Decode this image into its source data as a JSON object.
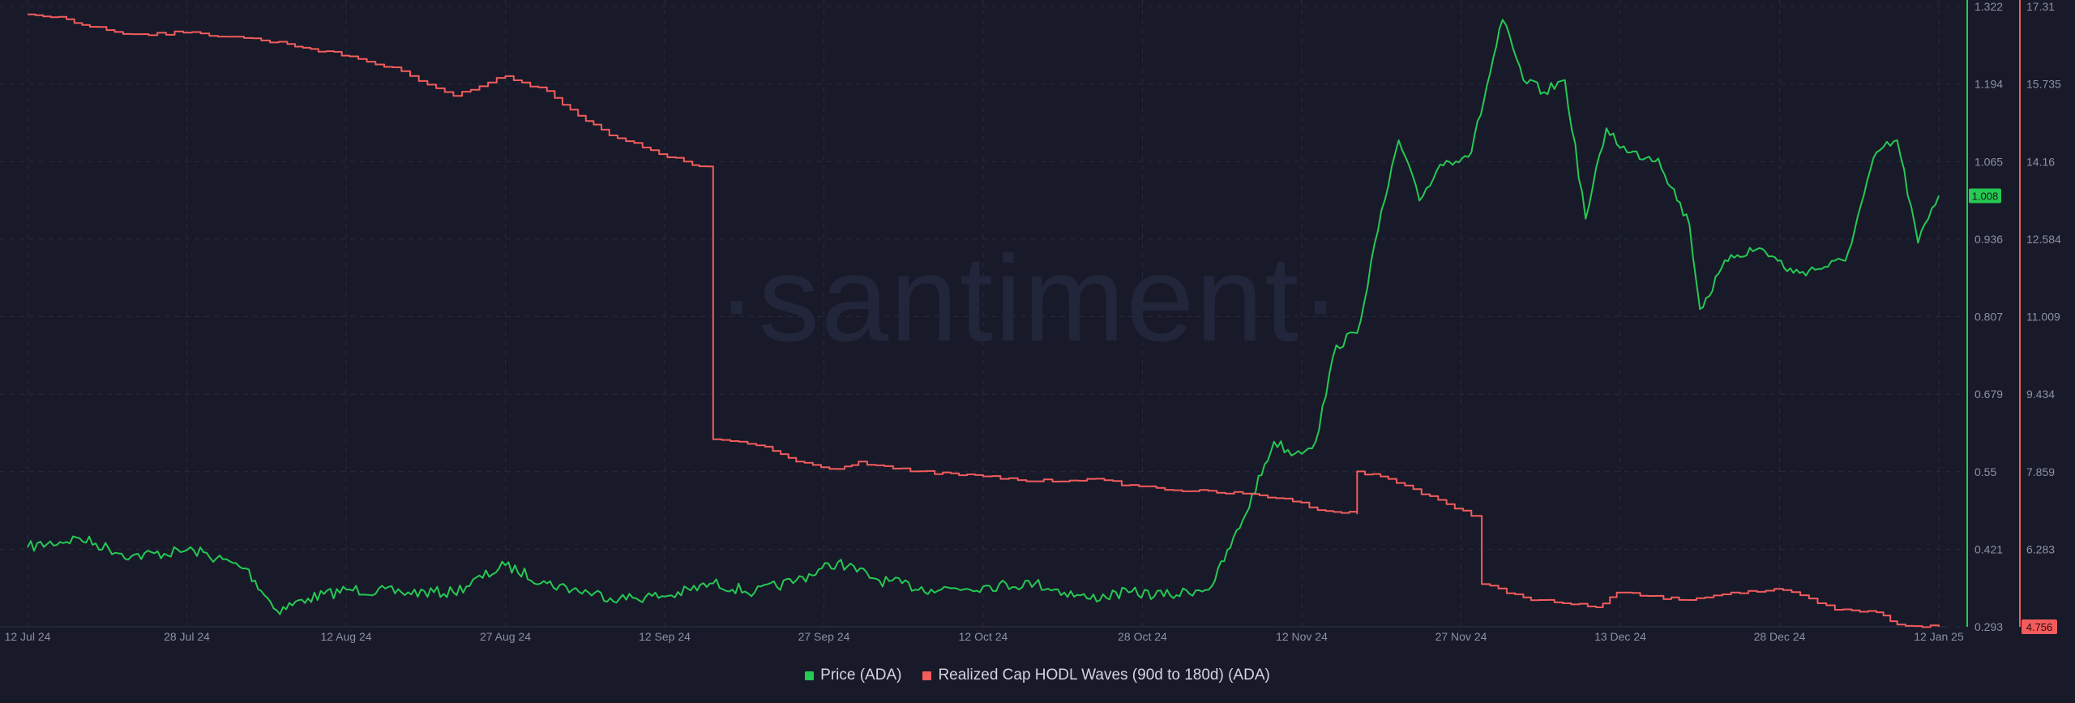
{
  "watermark": "·santiment·",
  "colors": {
    "background": "#181a29",
    "price": "#26c953",
    "hodl": "#f25c5c",
    "grid": "#262a3a",
    "tick": "#8c90a4"
  },
  "chart_data": {
    "type": "line",
    "title": "",
    "grid": true,
    "legend_placement": "bottom-center",
    "x_ticks": [
      "12 Jul 24",
      "28 Jul 24",
      "12 Aug 24",
      "27 Aug 24",
      "12 Sep 24",
      "27 Sep 24",
      "12 Oct 24",
      "28 Oct 24",
      "12 Nov 24",
      "27 Nov 24",
      "13 Dec 24",
      "28 Dec 24",
      "12 Jan 25"
    ],
    "price_axis": {
      "ticks": [
        "1.322",
        "1.194",
        "1.065",
        "0.936",
        "0.807",
        "0.679",
        "0.55",
        "0.421",
        "0.293"
      ],
      "range": [
        0.293,
        1.322
      ],
      "current_label": "1.008",
      "current_value": 1.008
    },
    "hodl_axis": {
      "ticks": [
        "17.31",
        "15.735",
        "14.16",
        "12.584",
        "11.009",
        "9.434",
        "7.859",
        "6.283",
        "4.756"
      ],
      "range": [
        4.756,
        17.31
      ],
      "current_label": "4.756",
      "current_value": 4.756
    },
    "series": [
      {
        "name": "Price (ADA)",
        "axis": "price",
        "x": [
          "2024-07-12",
          "2024-07-17",
          "2024-07-22",
          "2024-07-28",
          "2024-08-02",
          "2024-08-05",
          "2024-08-08",
          "2024-08-12",
          "2024-08-17",
          "2024-08-22",
          "2024-08-27",
          "2024-08-31",
          "2024-09-04",
          "2024-09-07",
          "2024-09-12",
          "2024-09-16",
          "2024-09-20",
          "2024-09-24",
          "2024-09-28",
          "2024-10-02",
          "2024-10-07",
          "2024-10-12",
          "2024-10-17",
          "2024-10-22",
          "2024-10-26",
          "2024-10-30",
          "2024-11-03",
          "2024-11-06",
          "2024-11-09",
          "2024-11-11",
          "2024-11-13",
          "2024-11-15",
          "2024-11-17",
          "2024-11-19",
          "2024-11-21",
          "2024-11-23",
          "2024-11-25",
          "2024-11-28",
          "2024-12-01",
          "2024-12-03",
          "2024-12-05",
          "2024-12-07",
          "2024-12-09",
          "2024-12-11",
          "2024-12-13",
          "2024-12-16",
          "2024-12-19",
          "2024-12-20",
          "2024-12-23",
          "2024-12-26",
          "2024-12-29",
          "2025-01-01",
          "2025-01-03",
          "2025-01-06",
          "2025-01-08",
          "2025-01-10",
          "2025-01-12"
        ],
        "values": [
          0.425,
          0.44,
          0.41,
          0.42,
          0.39,
          0.32,
          0.34,
          0.355,
          0.35,
          0.35,
          0.395,
          0.365,
          0.35,
          0.34,
          0.345,
          0.365,
          0.35,
          0.37,
          0.4,
          0.37,
          0.355,
          0.36,
          0.365,
          0.34,
          0.35,
          0.345,
          0.36,
          0.47,
          0.6,
          0.58,
          0.6,
          0.76,
          0.78,
          0.95,
          1.1,
          1.0,
          1.06,
          1.08,
          1.3,
          1.2,
          1.18,
          1.2,
          0.97,
          1.12,
          1.08,
          1.07,
          0.96,
          0.82,
          0.91,
          0.92,
          0.88,
          0.89,
          0.9,
          1.08,
          1.1,
          0.93,
          1.008
        ]
      },
      {
        "name": "Realized Cap HODL Waves (90d to 180d) (ADA)",
        "axis": "hodl",
        "x": [
          "2024-07-12",
          "2024-07-15",
          "2024-07-18",
          "2024-07-22",
          "2024-07-27",
          "2024-08-01",
          "2024-08-06",
          "2024-08-12",
          "2024-08-17",
          "2024-08-22",
          "2024-08-27",
          "2024-08-31",
          "2024-09-03",
          "2024-09-06",
          "2024-09-10",
          "2024-09-14",
          "2024-09-16",
          "2024-09-16",
          "2024-09-21",
          "2024-09-24",
          "2024-09-28",
          "2024-09-30",
          "2024-10-05",
          "2024-10-12",
          "2024-10-17",
          "2024-10-22",
          "2024-10-27",
          "2024-11-01",
          "2024-11-06",
          "2024-11-10",
          "2024-11-14",
          "2024-11-17",
          "2024-11-17",
          "2024-11-20",
          "2024-11-24",
          "2024-11-28",
          "2024-11-29",
          "2024-12-03",
          "2024-12-06",
          "2024-12-10",
          "2024-12-12",
          "2024-12-18",
          "2024-12-23",
          "2024-12-28",
          "2025-01-02",
          "2025-01-06",
          "2025-01-08",
          "2025-01-12"
        ],
        "values": [
          17.15,
          17.1,
          16.9,
          16.75,
          16.78,
          16.7,
          16.55,
          16.3,
          16.0,
          15.5,
          15.9,
          15.6,
          15.1,
          14.7,
          14.4,
          14.1,
          14.05,
          8.55,
          8.4,
          8.1,
          7.95,
          8.1,
          7.9,
          7.8,
          7.7,
          7.75,
          7.6,
          7.5,
          7.45,
          7.35,
          7.1,
          7.05,
          7.9,
          7.75,
          7.4,
          7.0,
          5.62,
          5.35,
          5.25,
          5.15,
          5.45,
          5.3,
          5.45,
          5.5,
          5.1,
          5.05,
          4.8,
          4.756
        ]
      }
    ]
  }
}
